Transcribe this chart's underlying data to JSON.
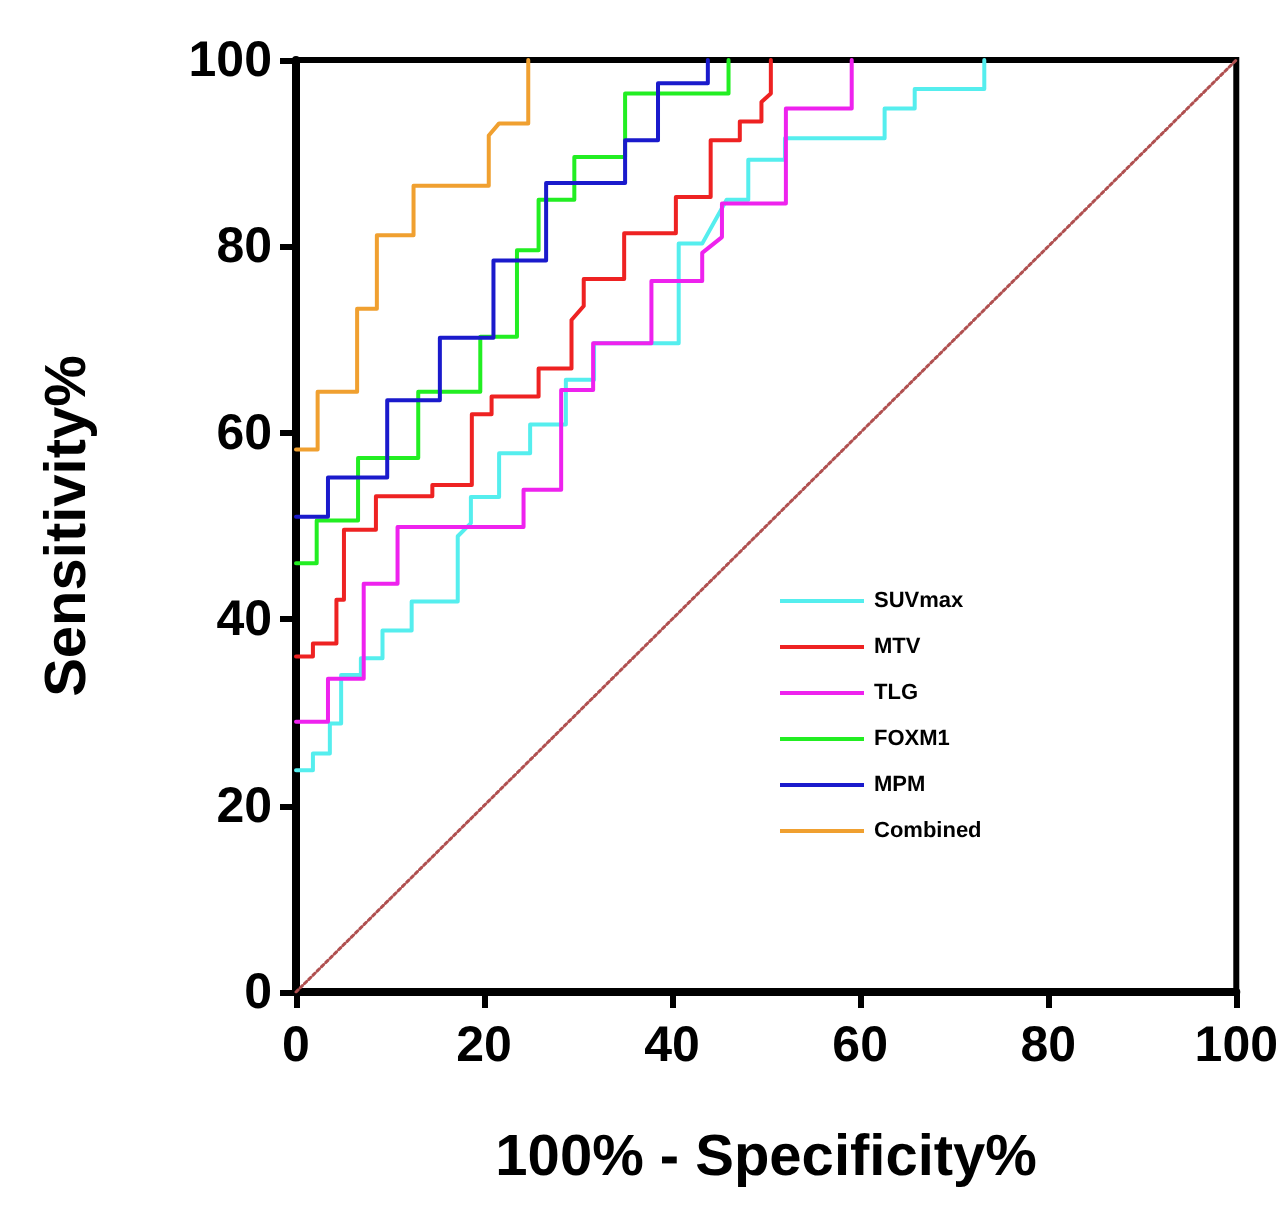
{
  "chart_data": {
    "type": "line",
    "xlabel": "100% - Specificity%",
    "ylabel": "Sensitivity%",
    "xlim": [
      0,
      100
    ],
    "ylim": [
      0,
      100
    ],
    "xticks": [
      0,
      20,
      40,
      60,
      80,
      100
    ],
    "yticks": [
      0,
      20,
      40,
      60,
      80,
      100
    ],
    "grid": false,
    "legend": "right",
    "marker": "none",
    "line_style": "solid",
    "series": [
      {
        "name": "SUVmax",
        "color": "#55eeee",
        "x": [
          0,
          1.8,
          1.8,
          3.6,
          3.6,
          4.8,
          4.8,
          6.9,
          6.9,
          9.2,
          9.2,
          12.3,
          12.3,
          17.2,
          17.2,
          18.6,
          18.6,
          21.6,
          21.6,
          24.9,
          24.9,
          28.7,
          28.7,
          31.7,
          31.7,
          40.7,
          40.7,
          43.2,
          45.8,
          48.1,
          48.1,
          52,
          52,
          62.6,
          62.6,
          65.8,
          65.8,
          73.2,
          73.2
        ],
        "values": [
          23.8,
          23.8,
          25.6,
          25.6,
          28.8,
          28.8,
          34,
          34,
          35.8,
          35.8,
          38.8,
          38.8,
          41.9,
          41.9,
          48.9,
          50.3,
          53.1,
          53.1,
          57.8,
          57.8,
          60.9,
          60.9,
          65.7,
          65.7,
          69.6,
          69.6,
          80.3,
          80.3,
          85,
          85,
          89.3,
          89.3,
          91.6,
          91.6,
          94.8,
          94.8,
          96.9,
          96.9,
          100
        ]
      },
      {
        "name": "MTV",
        "color": "#ee2222",
        "x": [
          0,
          1.8,
          1.8,
          4.3,
          4.3,
          5.1,
          5.1,
          8.5,
          8.5,
          14.5,
          14.5,
          18.7,
          18.7,
          20.8,
          20.8,
          25.8,
          25.8,
          29.3,
          29.3,
          30.6,
          30.6,
          34.9,
          34.9,
          40.4,
          40.4,
          44.1,
          44.1,
          47.2,
          47.2,
          49.5,
          49.5,
          50.5,
          50.5
        ],
        "values": [
          36,
          36,
          37.4,
          37.4,
          42.1,
          42.1,
          49.6,
          49.6,
          53.2,
          53.2,
          54.4,
          54.4,
          62,
          62,
          63.9,
          63.9,
          66.9,
          66.9,
          72.1,
          73.6,
          76.5,
          76.5,
          81.4,
          81.4,
          85.3,
          85.3,
          91.4,
          91.4,
          93.4,
          93.4,
          95.5,
          96.4,
          100
        ]
      },
      {
        "name": "TLG",
        "color": "#ee22ee",
        "x": [
          0,
          3.4,
          3.4,
          7.2,
          7.2,
          10.8,
          10.8,
          24.2,
          24.2,
          28.2,
          28.2,
          31.6,
          31.6,
          37.8,
          37.8,
          43.2,
          43.2,
          45.3,
          45.3,
          52.1,
          52.1,
          59.1,
          59.1
        ],
        "values": [
          29,
          29,
          33.6,
          33.6,
          43.8,
          43.8,
          49.9,
          49.9,
          53.9,
          53.9,
          64.6,
          64.6,
          69.6,
          69.6,
          76.3,
          76.3,
          79.3,
          81,
          84.6,
          84.6,
          94.8,
          94.8,
          100
        ]
      },
      {
        "name": "FOXM1",
        "color": "#22ee22",
        "x": [
          0,
          2.2,
          2.2,
          6.6,
          6.6,
          13,
          13,
          19.6,
          19.6,
          23.5,
          23.5,
          25.8,
          25.8,
          29.6,
          29.6,
          35,
          35,
          46,
          46
        ],
        "values": [
          46,
          46,
          50.6,
          50.6,
          57.3,
          57.3,
          64.4,
          64.4,
          70.3,
          70.3,
          79.6,
          79.6,
          85,
          85,
          89.6,
          89.6,
          96.4,
          96.4,
          100
        ]
      },
      {
        "name": "MPM",
        "color": "#1a1acc",
        "x": [
          0,
          3.4,
          3.4,
          9.7,
          9.7,
          15.3,
          15.3,
          21,
          21,
          26.6,
          26.6,
          35,
          35,
          38.5,
          38.5,
          43.8,
          43.8
        ],
        "values": [
          51,
          51,
          55.2,
          55.2,
          63.5,
          63.5,
          70.2,
          70.2,
          78.5,
          78.5,
          86.8,
          86.8,
          91.4,
          91.4,
          97.5,
          97.5,
          100
        ]
      },
      {
        "name": "Combined",
        "color": "#f0a030",
        "x": [
          0,
          2.3,
          2.3,
          6.5,
          6.5,
          8.6,
          8.6,
          12.5,
          12.5,
          20.5,
          20.5,
          21.6,
          24.7,
          24.7
        ],
        "values": [
          58.2,
          58.2,
          64.4,
          64.4,
          73.3,
          73.3,
          81.2,
          81.2,
          86.5,
          86.5,
          91.9,
          93.2,
          93.2,
          100
        ]
      },
      {
        "color": "#b05050",
        "line_style": "dotted",
        "x": [
          0,
          100
        ],
        "values": [
          0,
          100
        ]
      }
    ]
  }
}
